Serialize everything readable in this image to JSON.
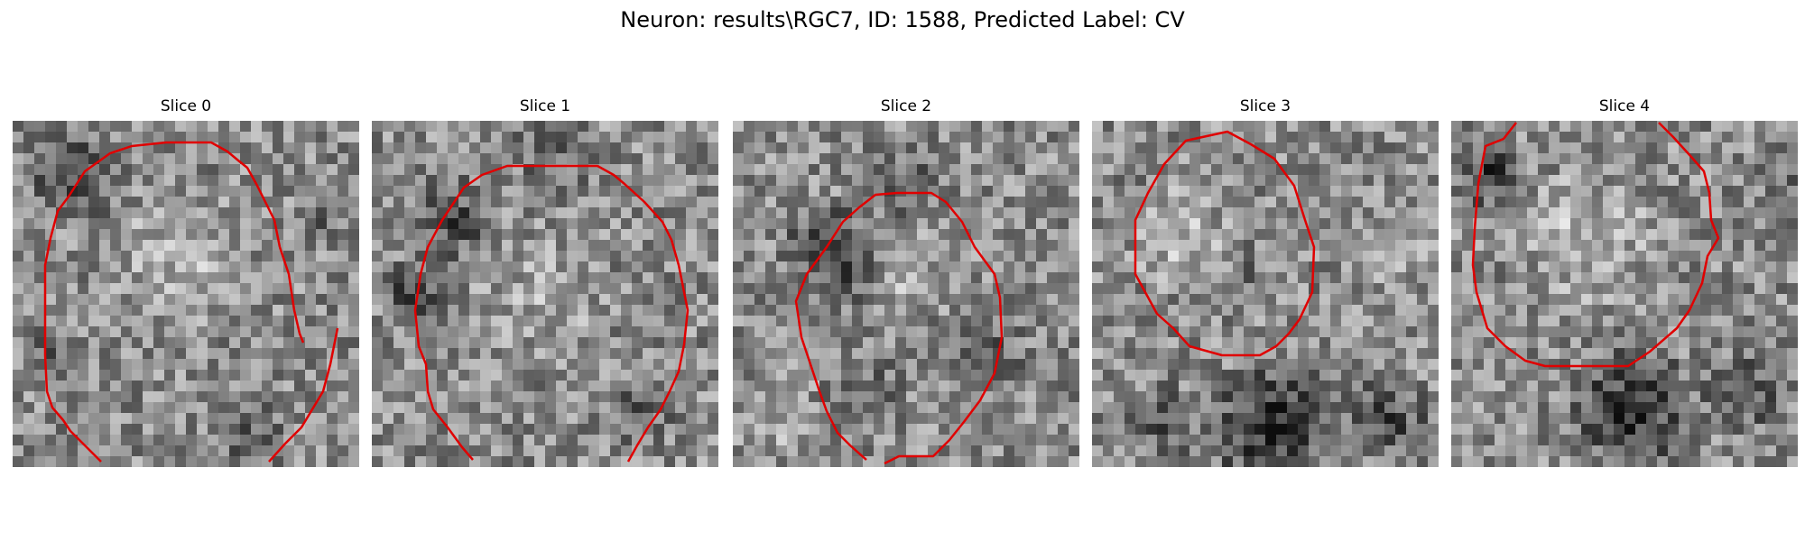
{
  "figure": {
    "title": "Neuron: results\\RGC7, ID: 1588, Predicted Label: CV"
  },
  "panels": [
    {
      "title": "Slice 0"
    },
    {
      "title": "Slice 1"
    },
    {
      "title": "Slice 2"
    },
    {
      "title": "Slice 3"
    },
    {
      "title": "Slice 4"
    }
  ],
  "colors": {
    "contour": "#e00000",
    "background": "#ffffff"
  }
}
